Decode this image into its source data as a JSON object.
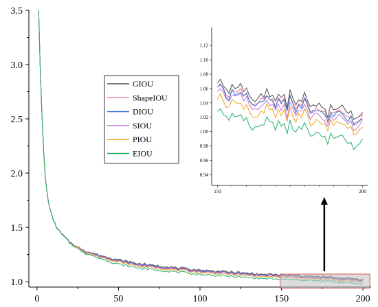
{
  "chart_data": [
    {
      "type": "line",
      "role": "main",
      "xlim": [
        -5,
        205
      ],
      "ylim": [
        0.95,
        3.5
      ],
      "x_ticks": [
        0,
        50,
        100,
        150,
        200
      ],
      "y_ticks": [
        1.0,
        1.5,
        2.0,
        2.5,
        3.0,
        3.5
      ],
      "x_tick_labels": [
        "0",
        "50",
        "100",
        "150",
        "200"
      ],
      "y_tick_labels": [
        "1.0",
        "1.5",
        "2.0",
        "2.5",
        "3.0",
        "3.5"
      ],
      "grid": false,
      "legend_position": "center-left",
      "zoom_region": {
        "x": [
          150,
          200
        ],
        "y": [
          0.94,
          1.07
        ]
      },
      "series": [
        {
          "name": "GIOU",
          "color": "#4d4d4d",
          "offset": 0.022
        },
        {
          "name": "ShapeIOU",
          "color": "#e8738a",
          "offset": 0.016
        },
        {
          "name": "DIOU",
          "color": "#2b6cd6",
          "offset": 0.014
        },
        {
          "name": "SIOU",
          "color": "#c473d4",
          "offset": 0.008
        },
        {
          "name": "PIOU",
          "color": "#f0a21e",
          "offset": 0.0
        },
        {
          "name": "EIOU",
          "color": "#1fb06a",
          "offset": -0.018
        }
      ],
      "base_curve": {
        "x": [
          1,
          2,
          3,
          4,
          5,
          6,
          7,
          8,
          10,
          12,
          15,
          20,
          25,
          30,
          40,
          50,
          60,
          70,
          80,
          90,
          100,
          110,
          120,
          130,
          140,
          150,
          160,
          170,
          180,
          190,
          200
        ],
        "y": [
          3.5,
          2.95,
          2.55,
          2.22,
          1.98,
          1.84,
          1.74,
          1.66,
          1.57,
          1.5,
          1.44,
          1.36,
          1.31,
          1.27,
          1.22,
          1.18,
          1.15,
          1.13,
          1.115,
          1.1,
          1.085,
          1.075,
          1.065,
          1.055,
          1.045,
          1.04,
          1.035,
          1.025,
          1.02,
          1.01,
          1.0
        ]
      }
    },
    {
      "type": "line",
      "role": "inset",
      "xlim": [
        148,
        202
      ],
      "ylim": [
        0.925,
        1.145
      ],
      "x_ticks": [
        150,
        200
      ],
      "y_ticks": [
        0.94,
        0.96,
        0.98,
        1.0,
        1.02,
        1.04,
        1.06,
        1.08,
        1.1,
        1.12
      ],
      "x_tick_labels": [
        "150",
        "200"
      ],
      "y_tick_labels": [
        "0.94",
        "0.96",
        "0.98",
        "1.00",
        "1.02",
        "1.04",
        "1.06",
        "1.08",
        "1.10",
        "1.12"
      ],
      "grid": false
    }
  ]
}
